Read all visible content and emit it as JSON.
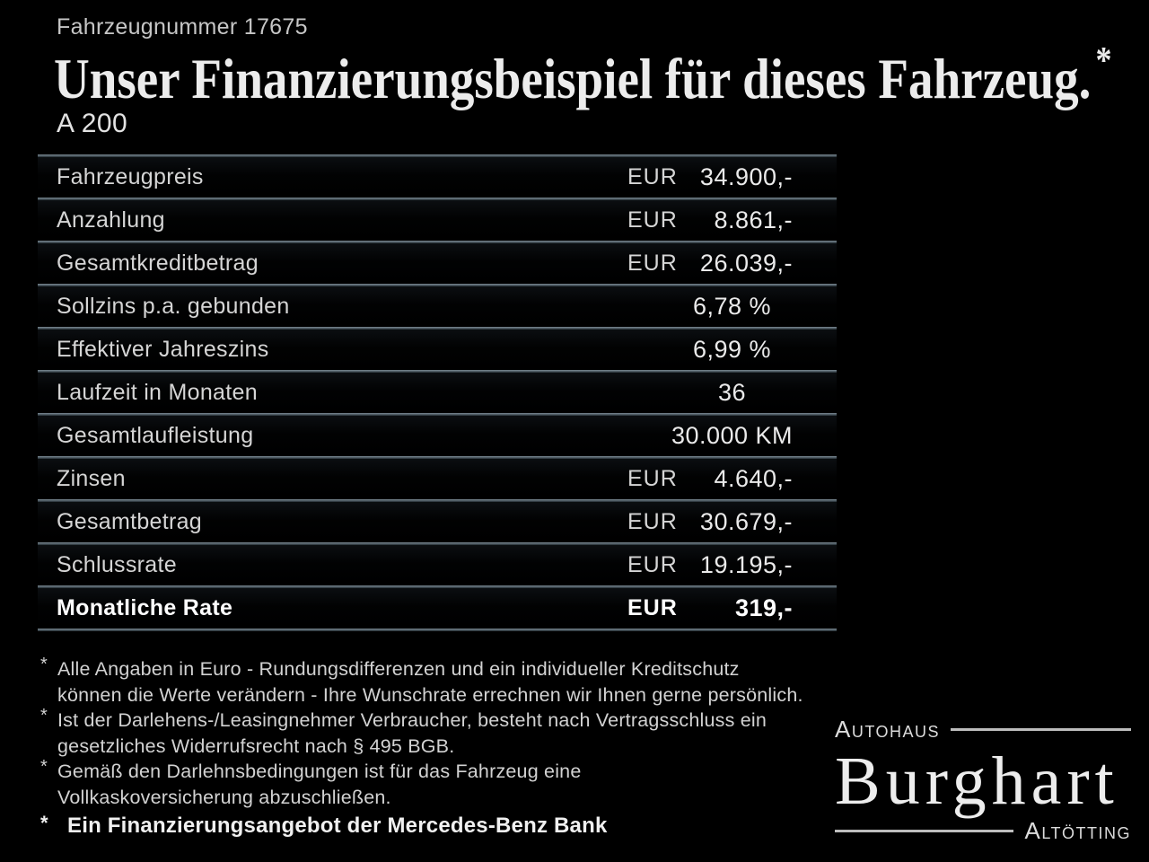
{
  "header": {
    "vehicle_number": "Fahrzeugnummer 17675",
    "title": "Unser Finanzierungsbeispiel für dieses Fahrzeug.",
    "title_footnote_mark": "*",
    "model": "A 200"
  },
  "finance_table": {
    "rows": [
      {
        "label": "Fahrzeugpreis",
        "currency": "EUR",
        "value": "34.900,-",
        "emphasis": false
      },
      {
        "label": "Anzahlung",
        "currency": "EUR",
        "value": "8.861,-",
        "emphasis": false
      },
      {
        "label": "Gesamtkreditbetrag",
        "currency": "EUR",
        "value": "26.039,-",
        "emphasis": false
      },
      {
        "label": "Sollzins p.a. gebunden",
        "currency": "",
        "value": "6,78 %",
        "emphasis": false
      },
      {
        "label": "Effektiver Jahreszins",
        "currency": "",
        "value": "6,99 %",
        "emphasis": false
      },
      {
        "label": "Laufzeit in Monaten",
        "currency": "",
        "value": "36",
        "emphasis": false
      },
      {
        "label": "Gesamtlaufleistung",
        "currency": "",
        "value": "30.000 KM",
        "emphasis": false
      },
      {
        "label": "Zinsen",
        "currency": "EUR",
        "value": "4.640,-",
        "emphasis": false
      },
      {
        "label": "Gesamtbetrag",
        "currency": "EUR",
        "value": "30.679,-",
        "emphasis": false
      },
      {
        "label": "Schlussrate",
        "currency": "EUR",
        "value": "19.195,-",
        "emphasis": false
      },
      {
        "label": "Monatliche Rate",
        "currency": "EUR",
        "value": "319,-",
        "emphasis": true
      }
    ]
  },
  "footnotes": [
    {
      "marker": "*",
      "text": "Alle Angaben in Euro - Rundungsdifferenzen und ein individueller Kreditschutz\nkönnen die Werte verändern - Ihre Wunschrate errechnen wir Ihnen gerne persönlich."
    },
    {
      "marker": "*",
      "text": "Ist der Darlehens-/Leasingnehmer Verbraucher, besteht nach Vertragsschluss ein\ngesetzliches Widerrufsrecht nach § 495 BGB."
    },
    {
      "marker": "*",
      "text": "Gemäß den Darlehnsbedingungen ist für das Fahrzeug eine\nVollkaskoversicherung abzuschließen."
    }
  ],
  "financing_note": {
    "marker": "*",
    "text": "Ein Finanzierungsangebot der Mercedes-Benz Bank"
  },
  "dealer_logo": {
    "top_line": "Autohaus",
    "name": "Burghart",
    "bottom_line": "Altötting"
  },
  "colors": {
    "background": "#000000",
    "divider": "#4d5961",
    "text_primary": "#e8e8e8",
    "text_secondary": "#d2d2d2"
  }
}
